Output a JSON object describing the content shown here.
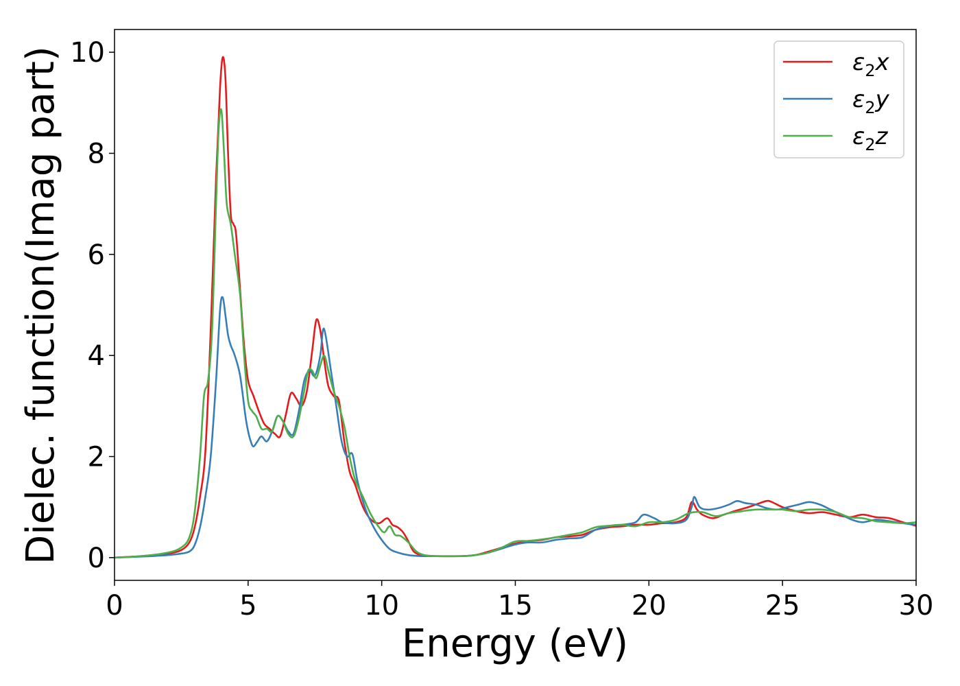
{
  "chart_data": {
    "type": "line",
    "xlabel": "Energy (eV)",
    "ylabel": "Dielec. function(Imag part)",
    "xlim": [
      0,
      30
    ],
    "ylim": [
      -0.45,
      10.45
    ],
    "xticks": [
      0,
      5,
      10,
      15,
      20,
      25,
      30
    ],
    "yticks": [
      0,
      2,
      4,
      6,
      8,
      10
    ],
    "grid": false,
    "legend_position": "top-right",
    "series": [
      {
        "name": "ε₂x",
        "legend_base": "ε",
        "legend_sub": "2",
        "legend_tail": "x",
        "color": "#e41a1c",
        "x": [
          0,
          1,
          2,
          2.5,
          2.8,
          3.0,
          3.2,
          3.4,
          3.6,
          3.8,
          3.95,
          4.05,
          4.15,
          4.25,
          4.35,
          4.45,
          4.55,
          4.7,
          4.85,
          5.0,
          5.2,
          5.4,
          5.6,
          5.8,
          6.0,
          6.2,
          6.4,
          6.6,
          6.8,
          7.0,
          7.2,
          7.4,
          7.55,
          7.7,
          7.85,
          8.0,
          8.2,
          8.4,
          8.6,
          8.8,
          9.0,
          9.3,
          9.6,
          9.9,
          10.2,
          10.4,
          10.6,
          10.8,
          11.0,
          11.2,
          11.5,
          12.0,
          13.0,
          13.5,
          14.0,
          14.5,
          15.0,
          15.5,
          16.0,
          16.5,
          17.0,
          17.5,
          18.0,
          18.5,
          19.0,
          19.5,
          20.0,
          20.5,
          21.0,
          21.4,
          21.6,
          21.8,
          22.0,
          22.4,
          22.8,
          23.2,
          23.6,
          24.0,
          24.4,
          24.6,
          25.0,
          25.5,
          26.0,
          26.5,
          27.0,
          27.5,
          28.0,
          28.5,
          29.0,
          29.5,
          30.0
        ],
        "y": [
          0.0,
          0.03,
          0.08,
          0.15,
          0.3,
          0.6,
          1.2,
          2.1,
          4.5,
          7.5,
          9.3,
          9.9,
          9.5,
          8.0,
          6.8,
          6.6,
          6.4,
          5.3,
          4.2,
          3.5,
          3.2,
          2.9,
          2.65,
          2.55,
          2.45,
          2.4,
          2.8,
          3.25,
          3.15,
          3.0,
          3.3,
          4.1,
          4.7,
          4.5,
          3.9,
          3.4,
          3.2,
          3.1,
          2.3,
          1.7,
          1.45,
          1.0,
          0.75,
          0.68,
          0.78,
          0.65,
          0.6,
          0.5,
          0.32,
          0.12,
          0.05,
          0.03,
          0.03,
          0.05,
          0.12,
          0.2,
          0.28,
          0.33,
          0.35,
          0.4,
          0.42,
          0.45,
          0.55,
          0.6,
          0.62,
          0.65,
          0.65,
          0.68,
          0.7,
          0.8,
          1.1,
          0.95,
          0.85,
          0.78,
          0.85,
          0.92,
          0.98,
          1.05,
          1.12,
          1.1,
          1.0,
          0.92,
          0.88,
          0.9,
          0.85,
          0.8,
          0.85,
          0.8,
          0.78,
          0.7,
          0.63
        ]
      },
      {
        "name": "ε₂y",
        "legend_base": "ε",
        "legend_sub": "2",
        "legend_tail": "y",
        "color": "#377eb8",
        "x": [
          0,
          1,
          2,
          2.5,
          2.8,
          3.0,
          3.2,
          3.4,
          3.6,
          3.8,
          3.95,
          4.05,
          4.15,
          4.25,
          4.35,
          4.5,
          4.7,
          4.9,
          5.0,
          5.1,
          5.2,
          5.35,
          5.5,
          5.7,
          5.9,
          6.1,
          6.3,
          6.5,
          6.7,
          6.9,
          7.1,
          7.3,
          7.5,
          7.7,
          7.8,
          7.9,
          8.1,
          8.3,
          8.5,
          8.7,
          8.9,
          9.1,
          9.4,
          9.7,
          10.0,
          10.3,
          10.6,
          11.0,
          11.5,
          12.0,
          13.0,
          13.5,
          14.0,
          14.5,
          15.0,
          15.5,
          16.0,
          16.5,
          17.0,
          17.5,
          18.0,
          18.5,
          19.0,
          19.5,
          19.8,
          20.2,
          20.5,
          21.0,
          21.4,
          21.6,
          21.7,
          21.9,
          22.2,
          22.6,
          23.0,
          23.3,
          23.6,
          24.0,
          24.4,
          24.8,
          25.2,
          25.6,
          26.0,
          26.4,
          26.8,
          27.2,
          27.6,
          28.0,
          28.5,
          29.0,
          29.5,
          30.0
        ],
        "y": [
          0.0,
          0.02,
          0.05,
          0.08,
          0.12,
          0.25,
          0.6,
          1.2,
          2.0,
          3.5,
          4.9,
          5.15,
          4.8,
          4.4,
          4.2,
          4.0,
          3.6,
          2.8,
          2.5,
          2.3,
          2.2,
          2.3,
          2.4,
          2.3,
          2.5,
          2.8,
          2.7,
          2.5,
          2.45,
          2.9,
          3.5,
          3.7,
          3.6,
          4.0,
          4.5,
          4.4,
          3.7,
          3.0,
          2.3,
          2.0,
          2.05,
          1.5,
          0.95,
          0.6,
          0.35,
          0.17,
          0.1,
          0.05,
          0.03,
          0.03,
          0.03,
          0.05,
          0.1,
          0.18,
          0.26,
          0.3,
          0.3,
          0.35,
          0.38,
          0.4,
          0.55,
          0.62,
          0.65,
          0.7,
          0.85,
          0.78,
          0.7,
          0.68,
          0.75,
          1.0,
          1.2,
          1.0,
          0.95,
          0.98,
          1.05,
          1.12,
          1.08,
          1.05,
          0.98,
          0.95,
          1.0,
          1.05,
          1.1,
          1.05,
          0.95,
          0.85,
          0.75,
          0.7,
          0.75,
          0.72,
          0.68,
          0.65
        ]
      },
      {
        "name": "ε₂z",
        "legend_base": "ε",
        "legend_sub": "2",
        "legend_tail": "z",
        "color": "#4daf4a",
        "x": [
          0,
          1,
          2,
          2.5,
          2.8,
          3.0,
          3.2,
          3.35,
          3.5,
          3.65,
          3.8,
          3.9,
          4.0,
          4.1,
          4.2,
          4.35,
          4.5,
          4.7,
          4.85,
          5.0,
          5.15,
          5.3,
          5.5,
          5.7,
          5.9,
          6.1,
          6.3,
          6.5,
          6.7,
          6.9,
          7.1,
          7.25,
          7.4,
          7.55,
          7.7,
          7.85,
          8.0,
          8.2,
          8.4,
          8.6,
          8.8,
          9.0,
          9.3,
          9.6,
          9.9,
          10.1,
          10.3,
          10.5,
          10.7,
          11.0,
          11.3,
          11.6,
          12.0,
          13.0,
          13.5,
          14.0,
          14.5,
          15.0,
          15.5,
          16.0,
          16.5,
          17.0,
          17.5,
          18.0,
          18.5,
          19.0,
          19.5,
          20.0,
          20.5,
          21.0,
          21.5,
          22.0,
          22.5,
          23.0,
          23.5,
          24.0,
          24.5,
          25.0,
          25.5,
          26.0,
          26.5,
          27.0,
          27.5,
          28.0,
          28.5,
          29.0,
          29.5,
          30.0
        ],
        "y": [
          0.0,
          0.03,
          0.1,
          0.2,
          0.4,
          0.9,
          2.0,
          3.2,
          3.5,
          4.5,
          7.0,
          8.5,
          8.85,
          8.0,
          7.0,
          6.6,
          6.0,
          5.2,
          4.0,
          3.1,
          2.9,
          2.8,
          2.55,
          2.55,
          2.5,
          2.8,
          2.7,
          2.45,
          2.4,
          2.75,
          3.3,
          3.7,
          3.7,
          3.55,
          3.8,
          4.0,
          3.7,
          3.3,
          3.0,
          2.6,
          2.0,
          1.55,
          1.2,
          0.85,
          0.6,
          0.5,
          0.62,
          0.45,
          0.43,
          0.3,
          0.12,
          0.05,
          0.03,
          0.03,
          0.05,
          0.1,
          0.2,
          0.32,
          0.33,
          0.36,
          0.4,
          0.45,
          0.5,
          0.6,
          0.63,
          0.65,
          0.62,
          0.7,
          0.7,
          0.75,
          0.88,
          0.9,
          0.82,
          0.88,
          0.92,
          0.95,
          0.95,
          0.95,
          0.92,
          0.95,
          0.95,
          0.9,
          0.8,
          0.78,
          0.72,
          0.7,
          0.68,
          0.7
        ]
      }
    ]
  }
}
